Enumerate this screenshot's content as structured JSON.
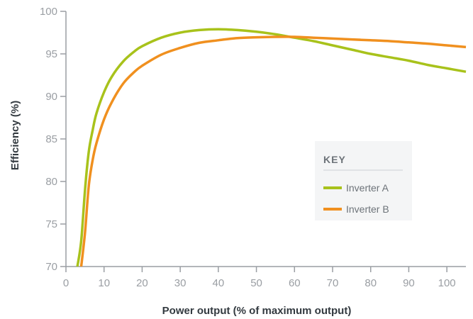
{
  "chart_data": {
    "type": "line",
    "xlabel": "Power output (% of maximum output)",
    "ylabel": "Efficiency (%)",
    "xlim": [
      0,
      105
    ],
    "ylim": [
      70,
      100
    ],
    "x_ticks": [
      0,
      10,
      20,
      30,
      40,
      50,
      60,
      70,
      80,
      90,
      100
    ],
    "y_ticks": [
      70,
      75,
      80,
      85,
      90,
      95,
      100
    ],
    "grid": false,
    "legend": {
      "title": "KEY",
      "placement": "right-center"
    },
    "colors": {
      "axis": "#9a9ea3",
      "inverter_a": "#a8c21b",
      "inverter_b": "#f0901f"
    },
    "series": [
      {
        "name": "Inverter A",
        "color": "#a8c21b",
        "x": [
          3,
          4,
          5,
          6,
          7,
          8,
          10,
          12,
          15,
          18,
          20,
          25,
          30,
          35,
          40,
          45,
          50,
          55,
          60,
          65,
          70,
          75,
          80,
          85,
          90,
          95,
          100,
          105
        ],
        "y": [
          70,
          73,
          79,
          83.5,
          86,
          88,
          90.5,
          92.3,
          94.1,
          95.3,
          95.9,
          96.9,
          97.5,
          97.8,
          97.9,
          97.8,
          97.6,
          97.3,
          96.9,
          96.5,
          96.0,
          95.5,
          95.0,
          94.6,
          94.2,
          93.7,
          93.3,
          92.9
        ]
      },
      {
        "name": "Inverter B",
        "color": "#f0901f",
        "x": [
          4,
          5,
          6,
          7,
          8,
          10,
          12,
          15,
          18,
          20,
          25,
          30,
          35,
          40,
          45,
          50,
          55,
          60,
          65,
          70,
          75,
          80,
          85,
          90,
          95,
          100,
          105
        ],
        "y": [
          70,
          74,
          79.5,
          82.5,
          84.5,
          87.3,
          89.3,
          91.5,
          92.9,
          93.6,
          94.9,
          95.7,
          96.3,
          96.6,
          96.85,
          96.95,
          97.0,
          97.0,
          96.9,
          96.8,
          96.7,
          96.6,
          96.5,
          96.35,
          96.2,
          96.0,
          95.8
        ]
      }
    ]
  }
}
